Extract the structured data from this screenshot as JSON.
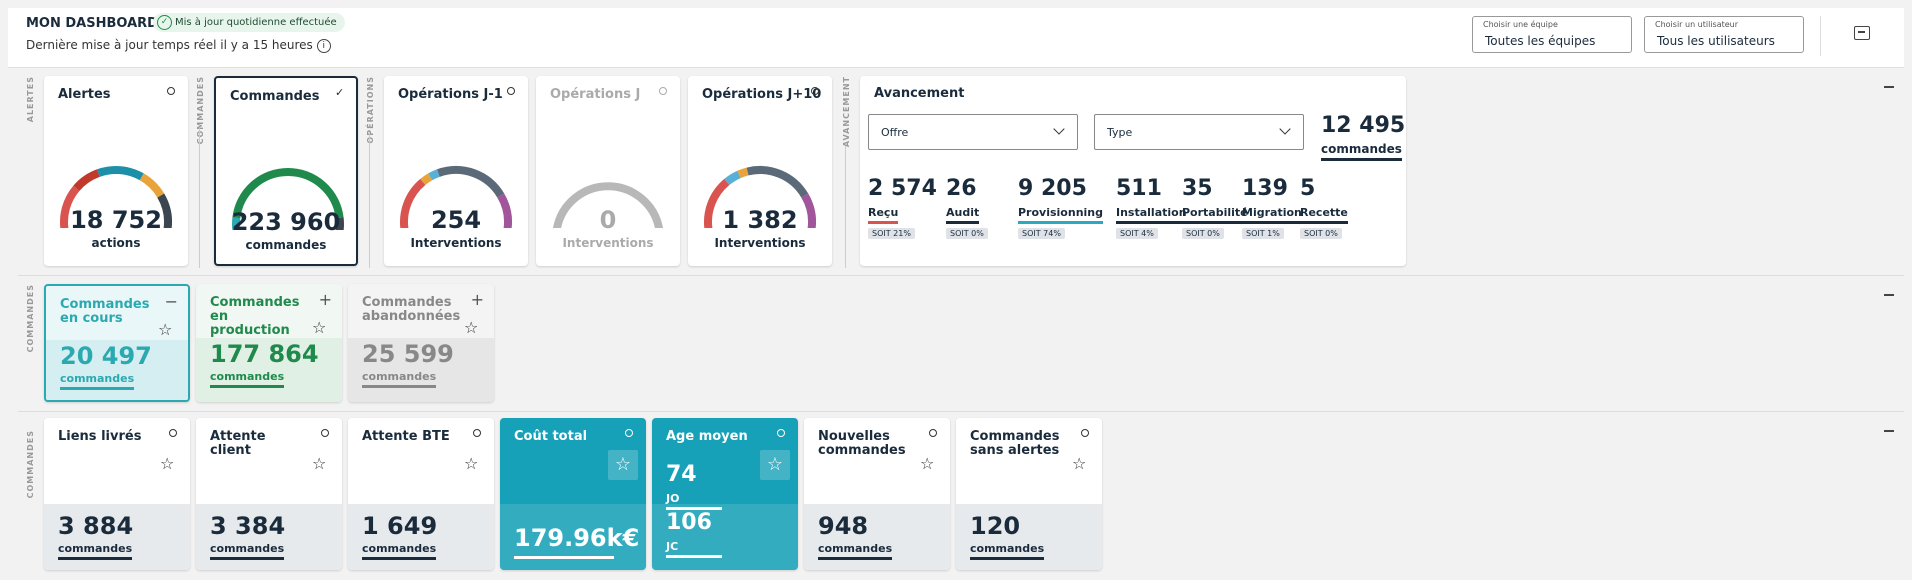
{
  "header": {
    "title": "MON DASHBOARD",
    "badge": "Mis à jour quotidienne effectuée",
    "subtitle": "Dernière mise à jour temps réel il y a 15 heures",
    "team": {
      "label": "Choisir une équipe",
      "value": "Toutes les équipes"
    },
    "user": {
      "label": "Choisir un utilisateur",
      "value": "Tous les utilisateurs"
    }
  },
  "row1": {
    "labels": [
      "ALERTES",
      "COMMANDES",
      "OPÉRATIONS",
      "AVANCEMENT"
    ],
    "gauges": [
      {
        "title": "Alertes",
        "value": "18 752",
        "unit": "actions"
      },
      {
        "title": "Commandes",
        "value": "223 960",
        "unit": "commandes"
      },
      {
        "title": "Opérations J-1",
        "value": "254",
        "unit": "Interventions"
      },
      {
        "title": "Opérations J",
        "value": "0",
        "unit": "Interventions"
      },
      {
        "title": "Opérations J+10",
        "value": "1 382",
        "unit": "Interventions"
      }
    ],
    "avancement": {
      "title": "Avancement",
      "offre": "Offre",
      "type": "Type",
      "total": "12 495",
      "total_unit": "commandes",
      "items": [
        {
          "n": "2 574",
          "l": "Reçu",
          "p": "SOIT 21%",
          "c": "#d9534f"
        },
        {
          "n": "26",
          "l": "Audit",
          "p": "SOIT 0%",
          "c": "#1a2b3c"
        },
        {
          "n": "9 205",
          "l": "Provisionning",
          "p": "SOIT 74%",
          "c": "#2aa9c0"
        },
        {
          "n": "511",
          "l": "Installation",
          "p": "SOIT 4%",
          "c": "#1a2b3c"
        },
        {
          "n": "35",
          "l": "Portabilité",
          "p": "SOIT 0%",
          "c": "#1a2b3c"
        },
        {
          "n": "139",
          "l": "Migration",
          "p": "SOIT 1%",
          "c": "#1a2b3c"
        },
        {
          "n": "5",
          "l": "Recette",
          "p": "SOIT 0%",
          "c": "#1a2b3c"
        }
      ]
    }
  },
  "row2": {
    "label": "COMMANDES",
    "cards": [
      {
        "title": "Commandes en cours",
        "value": "20 497",
        "unit": "commandes",
        "sign": "−",
        "color": "#2aa9b0"
      },
      {
        "title": "Commandes en production",
        "value": "177 864",
        "unit": "commandes",
        "sign": "+",
        "color": "#1f8a4c"
      },
      {
        "title": "Commandes abandonnées",
        "value": "25 599",
        "unit": "commandes",
        "sign": "+",
        "color": "#888888"
      }
    ]
  },
  "row3": {
    "label": "COMMANDES",
    "cards": [
      {
        "title": "Liens livrés",
        "value": "3 884",
        "unit": "commandes"
      },
      {
        "title": "Attente client",
        "value": "3 384",
        "unit": "commandes"
      },
      {
        "title": "Attente BTE",
        "value": "1 649",
        "unit": "commandes"
      },
      {
        "title": "Coût total",
        "value": "179.96k€",
        "unit": ""
      },
      {
        "title": "Age moyen",
        "value": "74",
        "unit": "JO",
        "value2": "106",
        "unit2": "JC"
      },
      {
        "title": "Nouvelles commandes",
        "value": "948",
        "unit": "commandes"
      },
      {
        "title": "Commandes sans alertes",
        "value": "120",
        "unit": "commandes"
      }
    ]
  },
  "icons": {
    "check": "check-icon",
    "info": "info-icon",
    "archive": "archive-icon",
    "star": "star-icon"
  }
}
